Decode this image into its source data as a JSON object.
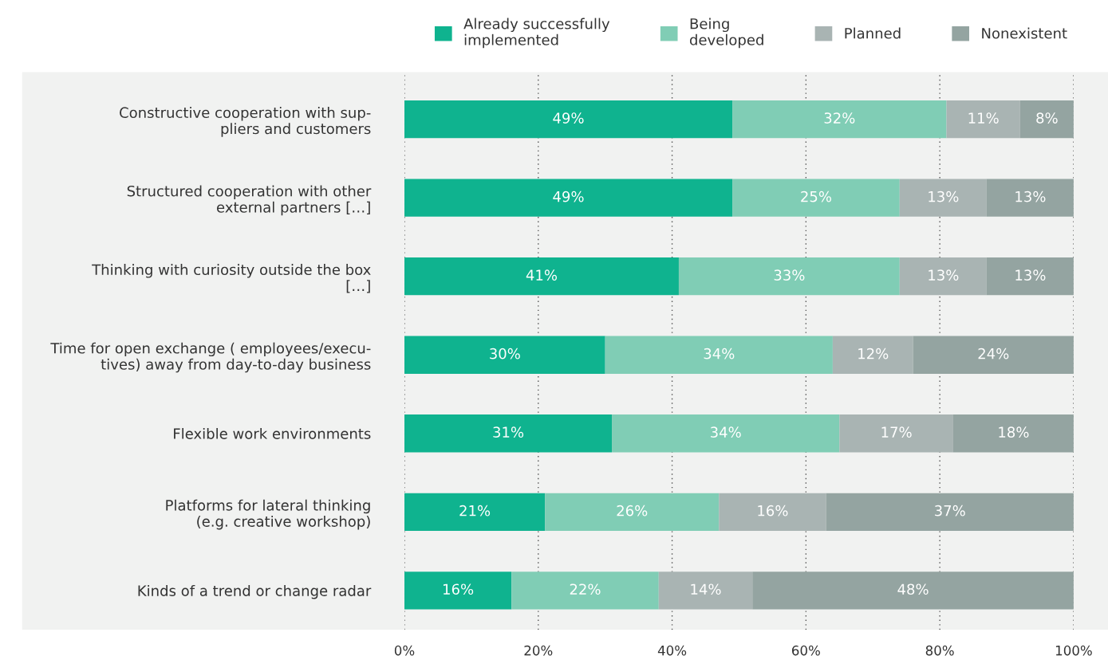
{
  "chart_data": {
    "type": "bar",
    "orientation": "horizontal",
    "stacked": true,
    "categories": [
      "Constructive cooperation with sup-\npliers and customers",
      "Structured cooperation with other\nexternal partners […]",
      "Thinking with curiosity outside the box\n[…]",
      "Time for open exchange ( employees/execu-\ntives) away from day-to-day business",
      "Flexible work environments",
      "Platforms for lateral thinking\n(e.g. creative workshop)",
      "Kinds of a trend or change radar"
    ],
    "series": [
      {
        "name": "Already successfully\nimplemented",
        "color": "#0fb38f",
        "values": [
          49,
          49,
          41,
          30,
          31,
          21,
          16
        ]
      },
      {
        "name": "Being\ndeveloped",
        "color": "#80cdb5",
        "values": [
          32,
          25,
          33,
          34,
          34,
          26,
          22
        ]
      },
      {
        "name": "Planned",
        "color": "#a9b4b3",
        "values": [
          11,
          13,
          13,
          12,
          17,
          16,
          14
        ]
      },
      {
        "name": "Nonexistent",
        "color": "#94a4a1",
        "values": [
          8,
          13,
          13,
          24,
          18,
          37,
          48
        ]
      }
    ],
    "xlim": [
      0,
      100
    ],
    "xticks": [
      {
        "value": 0,
        "label": "0%"
      },
      {
        "value": 20,
        "label": "20%"
      },
      {
        "value": 40,
        "label": "40%"
      },
      {
        "value": 60,
        "label": "60%"
      },
      {
        "value": 80,
        "label": "80%"
      },
      {
        "value": 100,
        "label": "100%"
      }
    ],
    "grid": "x",
    "legend": "top right",
    "value_labels": [
      [
        "49%",
        "49%",
        "41%",
        "30%",
        "31%",
        "21%",
        "16%"
      ],
      [
        "32%",
        "25%",
        "33%",
        "34%",
        "34%",
        "26%",
        "22%"
      ],
      [
        "11%",
        "13%",
        "13%",
        "12%",
        "17%",
        "16%",
        "14%"
      ],
      [
        "8%",
        "13%",
        "13%",
        "24%",
        "18%",
        "37%",
        "48%"
      ]
    ]
  }
}
